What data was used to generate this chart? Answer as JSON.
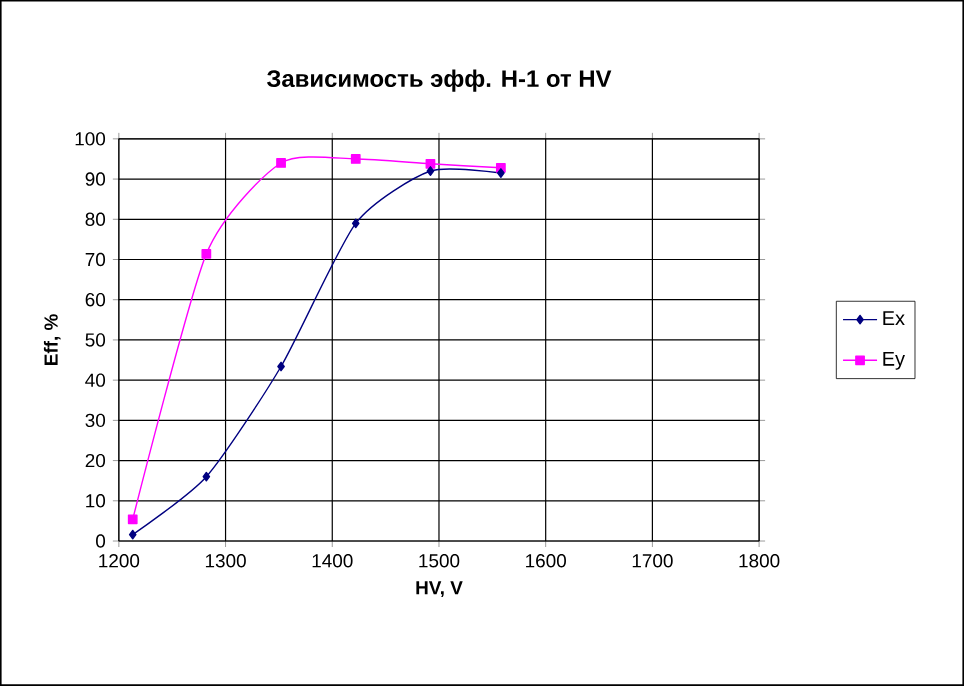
{
  "chart_data": {
    "type": "line",
    "title": "Зависимость эфф. Н-1 от HV",
    "xlabel": "HV, V",
    "ylabel": "Eff, %",
    "xlim": [
      1200,
      1800
    ],
    "xticks": [
      1200,
      1300,
      1400,
      1500,
      1600,
      1700,
      1800
    ],
    "ylim": [
      0,
      100
    ],
    "yticks": [
      0,
      10,
      20,
      30,
      40,
      50,
      60,
      70,
      80,
      90,
      100
    ],
    "grid": true,
    "legend": "right",
    "series": [
      {
        "name": "Ex",
        "color": "#000080",
        "marker": "diamond",
        "x": [
          1213,
          1282,
          1352,
          1422,
          1492,
          1558
        ],
        "values": [
          1.6,
          16,
          43.4,
          79,
          92,
          91.5
        ]
      },
      {
        "name": "Ey",
        "color": "#ff00ff",
        "marker": "square",
        "x": [
          1213,
          1282,
          1352,
          1422,
          1492,
          1558
        ],
        "values": [
          5.4,
          71.4,
          94,
          95,
          93.8,
          92.8
        ]
      }
    ]
  }
}
